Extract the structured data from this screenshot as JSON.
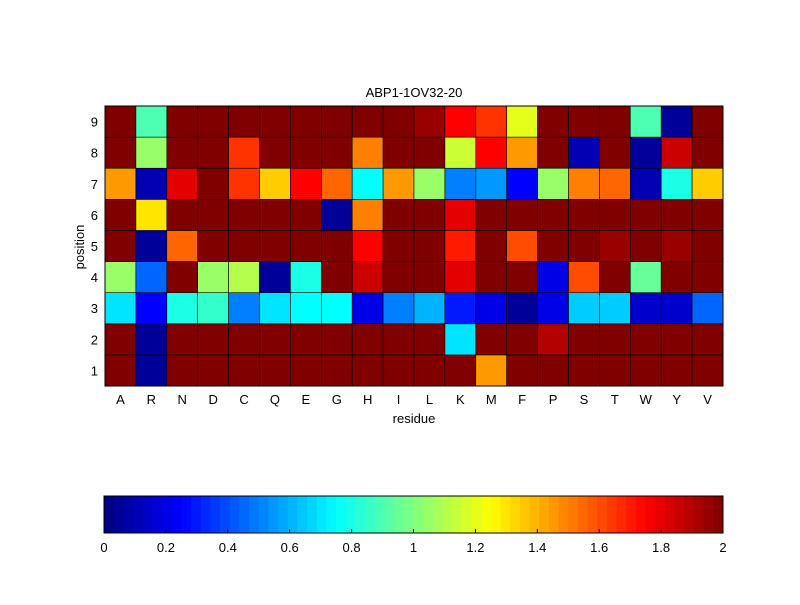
{
  "chart_data": {
    "type": "heatmap",
    "title": "ABP1-1OV32-20",
    "xlabel": "residue",
    "ylabel": "position",
    "x": [
      "A",
      "R",
      "N",
      "D",
      "C",
      "Q",
      "E",
      "G",
      "H",
      "I",
      "L",
      "K",
      "M",
      "F",
      "P",
      "S",
      "T",
      "W",
      "Y",
      "V"
    ],
    "y": [
      "1",
      "2",
      "3",
      "4",
      "5",
      "6",
      "7",
      "8",
      "9"
    ],
    "values": [
      [
        2.0,
        0.05,
        2.0,
        2.0,
        2.0,
        2.0,
        2.0,
        2.0,
        2.0,
        2.0,
        2.0,
        2.0,
        1.45,
        2.0,
        2.0,
        2.0,
        2.0,
        2.0,
        2.0,
        2.0
      ],
      [
        2.0,
        0.05,
        2.0,
        2.0,
        2.0,
        2.0,
        2.0,
        2.0,
        2.0,
        2.0,
        2.0,
        0.7,
        2.0,
        2.0,
        1.9,
        2.0,
        2.0,
        2.0,
        2.0,
        2.0
      ],
      [
        0.7,
        0.25,
        0.8,
        0.85,
        0.5,
        0.7,
        0.75,
        0.75,
        0.2,
        0.5,
        0.6,
        0.3,
        0.2,
        0.05,
        0.2,
        0.65,
        0.65,
        0.15,
        0.15,
        0.45
      ],
      [
        1.05,
        0.45,
        2.0,
        1.05,
        1.1,
        0.05,
        0.8,
        2.0,
        1.85,
        2.0,
        2.0,
        1.8,
        2.0,
        2.0,
        0.2,
        1.6,
        2.0,
        0.95,
        2.0,
        2.0
      ],
      [
        2.0,
        0.05,
        1.55,
        2.0,
        2.0,
        2.0,
        2.0,
        2.0,
        1.75,
        2.0,
        2.0,
        1.7,
        2.0,
        1.6,
        2.0,
        2.0,
        1.95,
        2.0,
        1.95,
        2.0
      ],
      [
        2.0,
        1.3,
        2.0,
        2.0,
        2.0,
        2.0,
        2.0,
        0.05,
        1.5,
        2.0,
        2.0,
        1.8,
        2.0,
        2.0,
        2.0,
        2.0,
        2.0,
        2.0,
        2.0,
        2.0
      ],
      [
        1.45,
        0.1,
        1.8,
        2.0,
        1.65,
        1.35,
        1.75,
        1.55,
        0.75,
        1.45,
        1.05,
        0.5,
        0.55,
        0.25,
        1.05,
        1.5,
        1.55,
        0.1,
        0.8,
        1.35
      ],
      [
        2.0,
        1.05,
        2.0,
        2.0,
        1.65,
        2.0,
        2.0,
        2.0,
        1.5,
        2.0,
        2.0,
        1.15,
        1.75,
        1.45,
        2.0,
        0.1,
        2.0,
        0.05,
        1.85,
        2.0
      ],
      [
        2.0,
        0.9,
        2.0,
        2.0,
        2.0,
        2.0,
        2.0,
        2.0,
        2.0,
        2.0,
        1.95,
        1.75,
        1.65,
        1.2,
        2.0,
        2.0,
        2.0,
        0.9,
        0.05,
        2.0
      ]
    ],
    "colormap": "jet",
    "clim": [
      0,
      2
    ],
    "colorbar": {
      "orientation": "horizontal",
      "placement": "bottom",
      "ticks": [
        "0",
        "0.2",
        "0.4",
        "0.6",
        "0.8",
        "1",
        "1.2",
        "1.4",
        "1.6",
        "1.8",
        "2"
      ]
    },
    "grid": true
  }
}
